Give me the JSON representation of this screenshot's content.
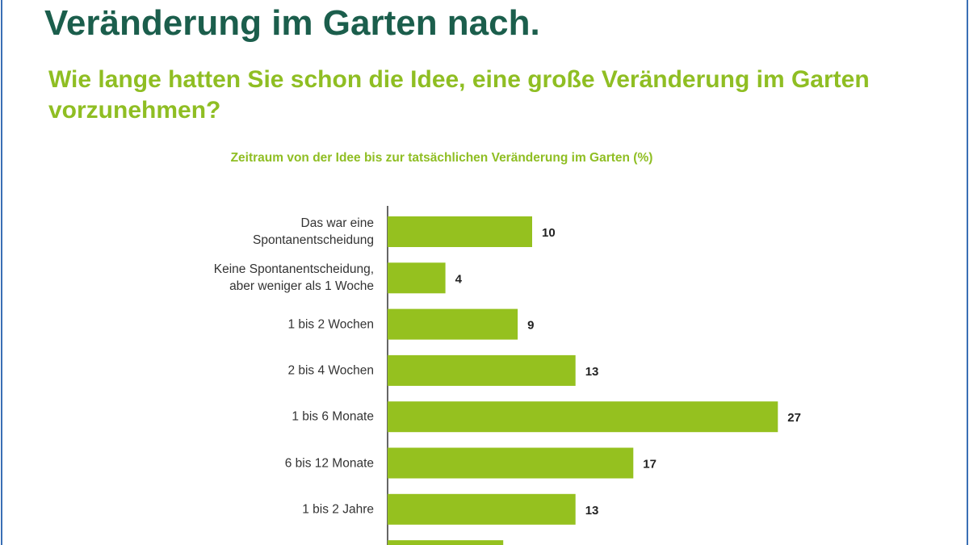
{
  "heading": "Veränderung im Garten nach.",
  "question": "Wie lange hatten Sie schon die Idee, eine große Veränderung im Garten vorzunehmen?",
  "chart_data": {
    "type": "bar",
    "orientation": "horizontal",
    "title": "Zeitraum von der Idee bis zur tatsächlichen Veränderung im Garten (%)",
    "categories": [
      "Das war eine Spontanentscheidung",
      "Keine Spontanentscheidung, aber weniger als 1 Woche",
      "1 bis 2 Wochen",
      "2 bis 4 Wochen",
      "1 bis 6 Monate",
      "6 bis 12 Monate",
      "1 bis 2 Jahre",
      null
    ],
    "values": [
      10,
      4,
      9,
      13,
      27,
      17,
      13,
      8
    ],
    "color": "#95c11f",
    "xlim": [
      0,
      30
    ]
  }
}
